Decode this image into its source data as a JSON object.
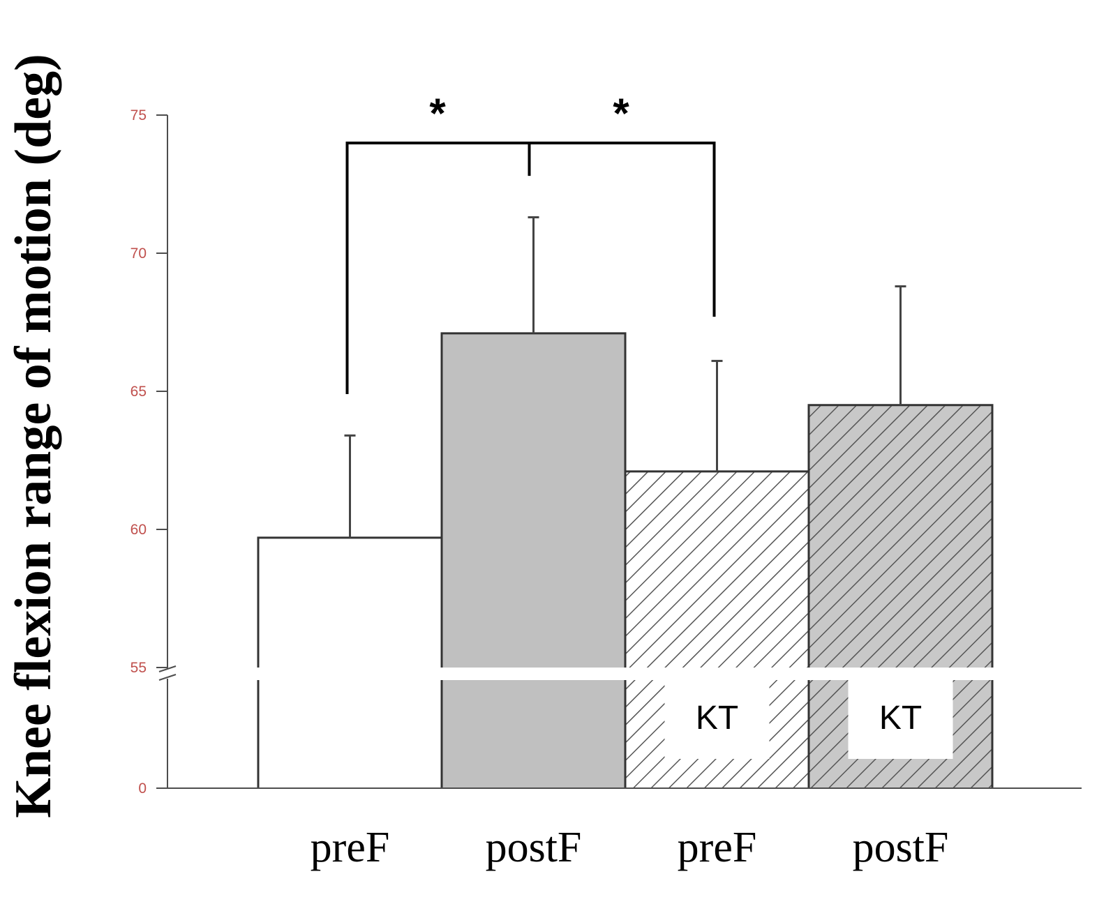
{
  "chart_data": {
    "type": "bar",
    "ylabel": "Knee flexion range of motion (deg)",
    "categories": [
      "preF",
      "postF",
      "preF",
      "postF"
    ],
    "values": [
      59.7,
      67.1,
      62.1,
      64.5
    ],
    "error": [
      3.7,
      4.2,
      4.0,
      4.3
    ],
    "fills": [
      "white",
      "gray",
      "hatch-white",
      "hatch-gray"
    ],
    "bar_labels": [
      "",
      "",
      "KT",
      "KT"
    ],
    "yticks": [
      "0",
      "55",
      "60",
      "65",
      "70",
      "75"
    ],
    "ylim": [
      55,
      75
    ],
    "axis_break": true,
    "significance": [
      {
        "from": 0,
        "to": 1,
        "label": "*"
      },
      {
        "from": 1,
        "to": 2,
        "label": "*"
      }
    ],
    "colors": {
      "gray_fill": "#c0c0c0",
      "hatch": "#555555",
      "axis": "#4d4d4d",
      "tick_text": "#c0504d"
    }
  }
}
